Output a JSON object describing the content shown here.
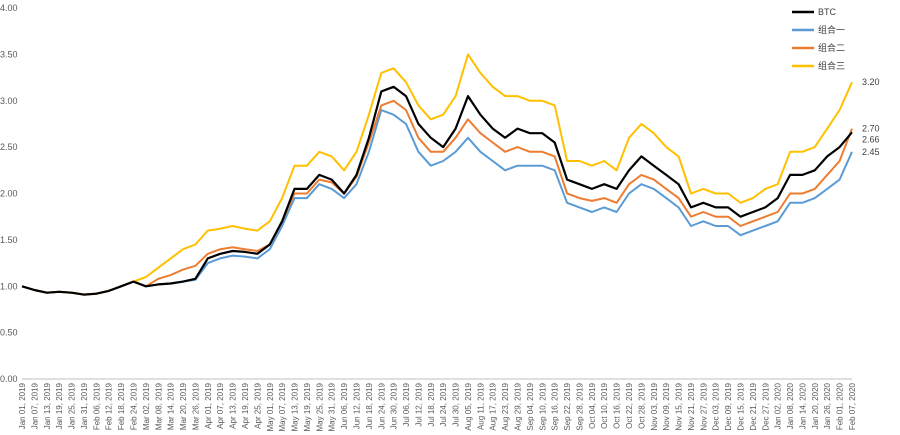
{
  "chart_data": {
    "type": "line",
    "title": "",
    "xlabel": "",
    "ylabel": "",
    "ylim": [
      0,
      4
    ],
    "ytick_labels": [
      "0.00",
      "0.50",
      "1.00",
      "1.50",
      "2.00",
      "2.50",
      "3.00",
      "3.50",
      "4.00"
    ],
    "grid": false,
    "legend_position": "top-right",
    "categories": [
      "Jan 01, 2019",
      "Jan 07, 2019",
      "Jan 13, 2019",
      "Jan 19, 2019",
      "Jan 25, 2019",
      "Jan 31, 2019",
      "Feb 06, 2019",
      "Feb 12, 2019",
      "Feb 18, 2019",
      "Feb 24, 2019",
      "Mar 02, 2019",
      "Mar 08, 2019",
      "Mar 14, 2019",
      "Mar 20, 2019",
      "Mar 26, 2019",
      "Apr 01, 2019",
      "Apr 07, 2019",
      "Apr 13, 2019",
      "Apr 19, 2019",
      "Apr 25, 2019",
      "May 01, 2019",
      "May 07, 2019",
      "May 13, 2019",
      "May 19, 2019",
      "May 25, 2019",
      "May 31, 2019",
      "Jun 06, 2019",
      "Jun 12, 2019",
      "Jun 18, 2019",
      "Jun 24, 2019",
      "Jun 30, 2019",
      "Jul 06, 2019",
      "Jul 12, 2019",
      "Jul 18, 2019",
      "Jul 24, 2019",
      "Jul 30, 2019",
      "Aug 05, 2019",
      "Aug 11, 2019",
      "Aug 17, 2019",
      "Aug 23, 2019",
      "Aug 29, 2019",
      "Sep 04, 2019",
      "Sep 10, 2019",
      "Sep 16, 2019",
      "Sep 22, 2019",
      "Sep 28, 2019",
      "Oct 04, 2019",
      "Oct 10, 2019",
      "Oct 16, 2019",
      "Oct 22, 2019",
      "Oct 28, 2019",
      "Nov 03, 2019",
      "Nov 09, 2019",
      "Nov 15, 2019",
      "Nov 21, 2019",
      "Nov 27, 2019",
      "Dec 03, 2019",
      "Dec 09, 2019",
      "Dec 15, 2019",
      "Dec 21, 2019",
      "Dec 27, 2019",
      "Jan 02, 2020",
      "Jan 08, 2020",
      "Jan 14, 2020",
      "Jan 20, 2020",
      "Jan 26, 2020",
      "Feb 01, 2020",
      "Feb 07, 2020"
    ],
    "series": [
      {
        "name": "BTC",
        "color": "#000000",
        "end_label": "2.66",
        "values": [
          1.0,
          0.96,
          0.93,
          0.94,
          0.93,
          0.91,
          0.92,
          0.95,
          1.0,
          1.05,
          1.0,
          1.02,
          1.03,
          1.05,
          1.08,
          1.3,
          1.35,
          1.38,
          1.37,
          1.35,
          1.45,
          1.7,
          2.05,
          2.05,
          2.2,
          2.15,
          2.0,
          2.2,
          2.6,
          3.1,
          3.15,
          3.05,
          2.75,
          2.6,
          2.5,
          2.7,
          3.05,
          2.85,
          2.7,
          2.6,
          2.7,
          2.65,
          2.65,
          2.55,
          2.15,
          2.1,
          2.05,
          2.1,
          2.05,
          2.25,
          2.4,
          2.3,
          2.2,
          2.1,
          1.85,
          1.9,
          1.85,
          1.85,
          1.75,
          1.8,
          1.85,
          1.95,
          2.2,
          2.2,
          2.25,
          2.4,
          2.5,
          2.66
        ]
      },
      {
        "name": "组合一",
        "color": "#5b9bd5",
        "end_label": "2.45",
        "values": [
          1.0,
          0.96,
          0.93,
          0.94,
          0.93,
          0.91,
          0.92,
          0.95,
          1.0,
          1.05,
          1.0,
          1.02,
          1.03,
          1.05,
          1.07,
          1.25,
          1.3,
          1.33,
          1.32,
          1.3,
          1.4,
          1.65,
          1.95,
          1.95,
          2.1,
          2.05,
          1.95,
          2.1,
          2.45,
          2.9,
          2.85,
          2.75,
          2.45,
          2.3,
          2.35,
          2.45,
          2.6,
          2.45,
          2.35,
          2.25,
          2.3,
          2.3,
          2.3,
          2.25,
          1.9,
          1.85,
          1.8,
          1.85,
          1.8,
          2.0,
          2.1,
          2.05,
          1.95,
          1.85,
          1.65,
          1.7,
          1.65,
          1.65,
          1.55,
          1.6,
          1.65,
          1.7,
          1.9,
          1.9,
          1.95,
          2.05,
          2.15,
          2.45
        ]
      },
      {
        "name": "组合二",
        "color": "#ed7d31",
        "end_label": "2.70",
        "values": [
          1.0,
          0.96,
          0.93,
          0.94,
          0.93,
          0.91,
          0.92,
          0.95,
          1.0,
          1.05,
          1.0,
          1.08,
          1.12,
          1.18,
          1.22,
          1.35,
          1.4,
          1.42,
          1.4,
          1.38,
          1.45,
          1.7,
          2.0,
          2.0,
          2.15,
          2.12,
          2.0,
          2.18,
          2.55,
          2.95,
          3.0,
          2.9,
          2.6,
          2.45,
          2.45,
          2.6,
          2.8,
          2.65,
          2.55,
          2.45,
          2.5,
          2.45,
          2.45,
          2.4,
          2.0,
          1.95,
          1.92,
          1.95,
          1.9,
          2.1,
          2.2,
          2.15,
          2.05,
          1.95,
          1.75,
          1.8,
          1.75,
          1.75,
          1.65,
          1.7,
          1.75,
          1.8,
          2.0,
          2.0,
          2.05,
          2.2,
          2.35,
          2.7
        ]
      },
      {
        "name": "组合三",
        "color": "#ffc000",
        "end_label": "3.20",
        "values": [
          1.0,
          0.96,
          0.93,
          0.94,
          0.93,
          0.91,
          0.92,
          0.95,
          1.0,
          1.05,
          1.1,
          1.2,
          1.3,
          1.4,
          1.45,
          1.6,
          1.62,
          1.65,
          1.62,
          1.6,
          1.7,
          1.95,
          2.3,
          2.3,
          2.45,
          2.4,
          2.25,
          2.45,
          2.85,
          3.3,
          3.35,
          3.2,
          2.95,
          2.8,
          2.85,
          3.05,
          3.5,
          3.3,
          3.15,
          3.05,
          3.05,
          3.0,
          3.0,
          2.95,
          2.35,
          2.35,
          2.3,
          2.35,
          2.25,
          2.6,
          2.75,
          2.65,
          2.5,
          2.4,
          2.0,
          2.05,
          2.0,
          2.0,
          1.9,
          1.95,
          2.05,
          2.1,
          2.45,
          2.45,
          2.5,
          2.7,
          2.9,
          3.2
        ]
      }
    ]
  }
}
